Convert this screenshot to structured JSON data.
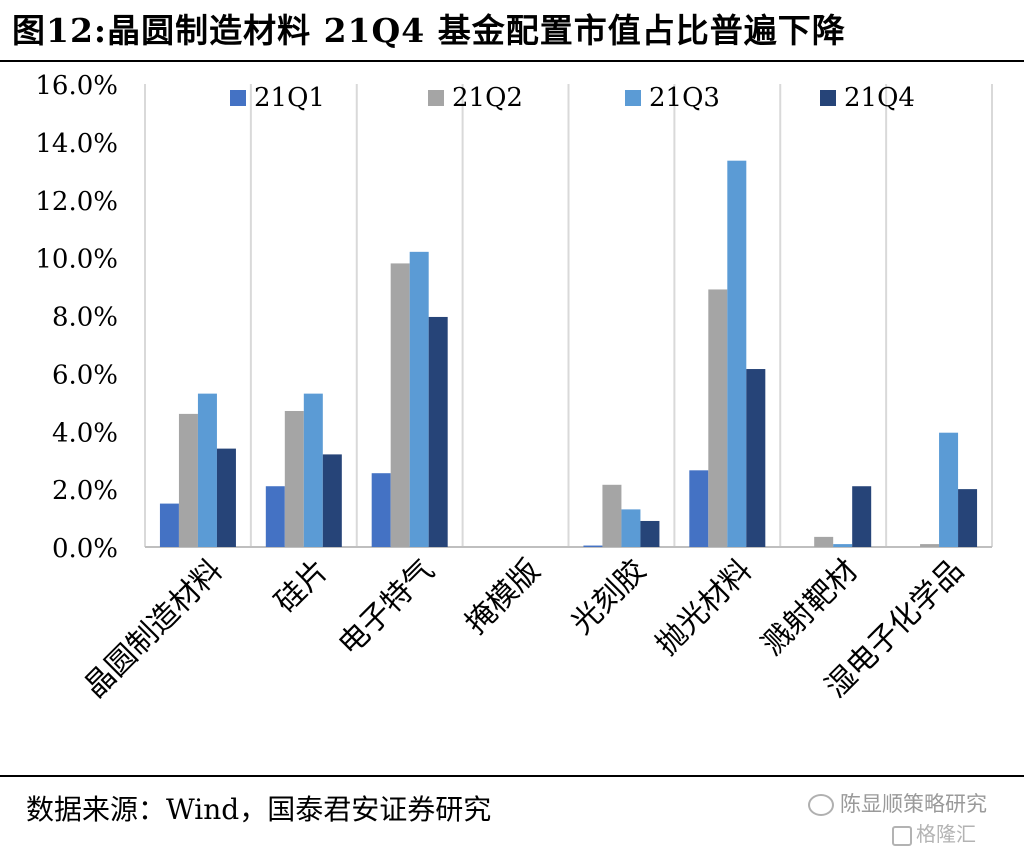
{
  "title": "图12:晶圆制造材料 21Q4 基金配置市值占比普遍下降",
  "source": "数据来源：Wind，国泰君安证券研究",
  "watermark": {
    "primary": "陈显顺策略研究",
    "secondary": "格隆汇"
  },
  "colors": {
    "21Q1": "#4472c4",
    "21Q2": "#a5a5a5",
    "21Q3": "#5b9bd5",
    "21Q4": "#264478",
    "grid": "#d9d9d9",
    "axis": "#bfbfbf"
  },
  "chart_data": {
    "type": "bar",
    "categories": [
      "晶圆制造材料",
      "硅片",
      "电子特气",
      "掩模版",
      "光刻胶",
      "抛光材料",
      "溅射靶材",
      "湿电子化学品"
    ],
    "series": [
      {
        "name": "21Q1",
        "values": [
          1.5,
          2.1,
          2.55,
          0.0,
          0.05,
          2.65,
          0.0,
          0.0
        ]
      },
      {
        "name": "21Q2",
        "values": [
          4.6,
          4.7,
          9.8,
          0.0,
          2.15,
          8.9,
          0.35,
          0.1
        ]
      },
      {
        "name": "21Q3",
        "values": [
          5.3,
          5.3,
          10.2,
          0.0,
          1.3,
          13.35,
          0.1,
          3.95
        ]
      },
      {
        "name": "21Q4",
        "values": [
          3.4,
          3.2,
          7.95,
          0.0,
          0.9,
          6.15,
          2.1,
          2.0
        ]
      }
    ],
    "y_ticks": [
      "0.0%",
      "2.0%",
      "4.0%",
      "6.0%",
      "8.0%",
      "10.0%",
      "12.0%",
      "14.0%",
      "16.0%"
    ],
    "ylim": [
      0,
      16
    ],
    "grid": "vertical",
    "legend_position": "top"
  }
}
